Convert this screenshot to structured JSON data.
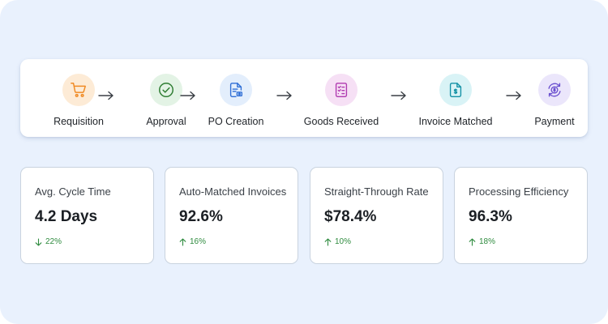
{
  "flow": {
    "steps": [
      {
        "label": "Requisition",
        "icon": "cart-icon",
        "bg": "#fdebd6",
        "fg": "#f08a24"
      },
      {
        "label": "Approval",
        "icon": "check-circle-icon",
        "bg": "#e3f3e5",
        "fg": "#2e7d32"
      },
      {
        "label": "PO Creation",
        "icon": "document-icon",
        "bg": "#e3eefc",
        "fg": "#2f6fd6"
      },
      {
        "label": "Goods Received",
        "icon": "checklist-icon",
        "bg": "#f6e0f5",
        "fg": "#b03ab0"
      },
      {
        "label": "Invoice Matched",
        "icon": "invoice-icon",
        "bg": "#d9f3f6",
        "fg": "#1592a6"
      },
      {
        "label": "Payment",
        "icon": "payment-cycle-icon",
        "bg": "#ebe6fb",
        "fg": "#6a4fcf"
      }
    ]
  },
  "metrics": [
    {
      "label": "Avg. Cycle Time",
      "value": "4.2 Days",
      "change": "22%",
      "direction": "down"
    },
    {
      "label": "Auto-Matched Invoices",
      "value": "92.6%",
      "change": "16%",
      "direction": "up"
    },
    {
      "label": "Straight-Through Rate",
      "value": "$78.4%",
      "change": "10%",
      "direction": "up"
    },
    {
      "label": "Processing Efficiency",
      "value": "96.3%",
      "change": "18%",
      "direction": "up"
    }
  ],
  "colors": {
    "positive": "#2e8b3e",
    "arrow": "#3a3f45"
  }
}
